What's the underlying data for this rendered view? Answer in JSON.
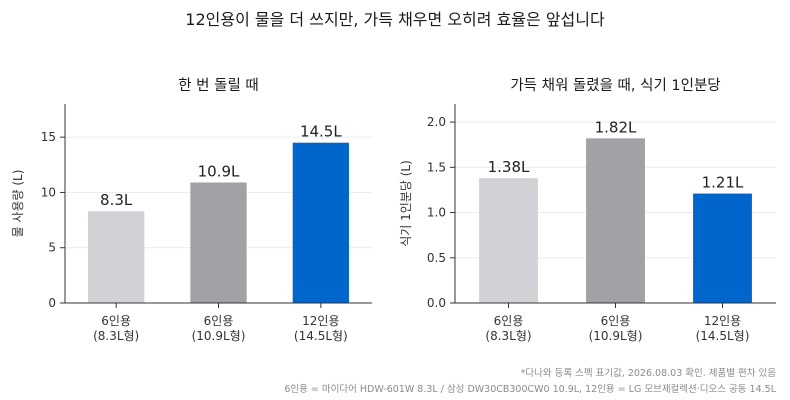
{
  "title": "12인용이 물을 더 쓰지만, 가득 채우면 오히려 효율은 앞섭니다",
  "footnotes": [
    "*다나와 등록 스펙 표기값, 2026.08.03 확인. 제품별 편차 있음",
    "6인용 = 마이다어 HDW-601W 8.3L / 삼성 DW30CB300CW0 10.9L, 12인용 = LG 모브제컬렉션·디오스 공동 14.5L"
  ],
  "colors": [
    "#d1d1d6",
    "#a1a1a6",
    "#0066cc"
  ],
  "chart_data": [
    {
      "type": "bar",
      "title": "한 번 돌릴 때",
      "ylabel": "물 사용량 (L)",
      "categories": [
        [
          "6인용",
          "(8.3L형)"
        ],
        [
          "6인용",
          "(10.9L형)"
        ],
        [
          "12인용",
          "(14.5L형)"
        ]
      ],
      "values": [
        8.3,
        10.9,
        14.5
      ],
      "value_labels": [
        "8.3L",
        "10.9L",
        "14.5L"
      ],
      "ylim": [
        0,
        18
      ],
      "yticks": [
        0,
        5,
        10,
        15
      ],
      "ytick_labels": [
        "0",
        "5",
        "10",
        "15"
      ],
      "grid": true
    },
    {
      "type": "bar",
      "title": "가득 채워 돌렸을 때, 식기 1인분당",
      "ylabel": "식기 1인분당 (L)",
      "categories": [
        [
          "6인용",
          "(8.3L형)"
        ],
        [
          "6인용",
          "(10.9L형)"
        ],
        [
          "12인용",
          "(14.5L형)"
        ]
      ],
      "values": [
        1.38,
        1.82,
        1.21
      ],
      "value_labels": [
        "1.38L",
        "1.82L",
        "1.21L"
      ],
      "ylim": [
        0,
        2.2
      ],
      "yticks": [
        0,
        0.5,
        1.0,
        1.5,
        2.0
      ],
      "ytick_labels": [
        "0.0",
        "0.5",
        "1.0",
        "1.5",
        "2.0"
      ],
      "grid": true
    }
  ]
}
